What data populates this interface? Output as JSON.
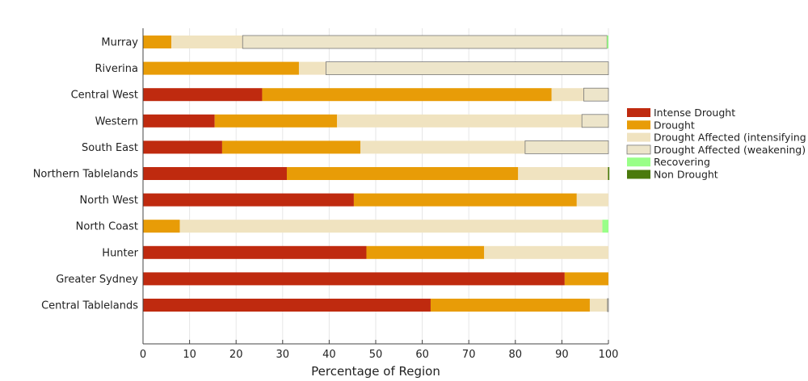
{
  "chart_data": {
    "type": "bar",
    "orientation": "horizontal",
    "stacked": true,
    "xlabel": "Percentage of Region",
    "ylabel": "",
    "xlim": [
      0,
      100
    ],
    "xticks": [
      0,
      10,
      20,
      30,
      40,
      50,
      60,
      70,
      80,
      90,
      100
    ],
    "grid": "vertical",
    "legend_position": "right",
    "categories": [
      "Murray",
      "Riverina",
      "Central West",
      "Western",
      "South East",
      "Northern Tablelands",
      "North West",
      "North Coast",
      "Hunter",
      "Greater Sydney",
      "Central Tablelands"
    ],
    "series": [
      {
        "name": "Intense Drought",
        "color": "#BF2A0F",
        "values": [
          0,
          0,
          25.6,
          15.4,
          17.0,
          30.9,
          45.3,
          0,
          48.0,
          90.6,
          61.8
        ]
      },
      {
        "name": "Drought",
        "color": "#E89C07",
        "values": [
          6.1,
          33.5,
          62.2,
          26.3,
          29.7,
          49.7,
          47.9,
          7.9,
          25.3,
          9.4,
          34.2
        ]
      },
      {
        "name": "Drought Affected (intensifying",
        "color": "#F0E3C0",
        "values": [
          15.3,
          5.8,
          6.9,
          52.6,
          35.4,
          19.3,
          6.8,
          90.8,
          26.7,
          0,
          3.8
        ]
      },
      {
        "name": "Drought Affected (weakening)",
        "color": "#EDE5CA",
        "outlined": true,
        "values": [
          78.3,
          60.7,
          5.3,
          5.7,
          17.9,
          0,
          0,
          0,
          0,
          0,
          0.2
        ]
      },
      {
        "name": "Recovering",
        "color": "#99FF88",
        "values": [
          0.3,
          0,
          0,
          0,
          0,
          0,
          0,
          1.3,
          0,
          0,
          0
        ]
      },
      {
        "name": "Non Drought",
        "color": "#4B7A0C",
        "values": [
          0,
          0,
          0,
          0,
          0,
          0.3,
          0,
          0,
          0,
          0,
          0
        ]
      }
    ]
  }
}
